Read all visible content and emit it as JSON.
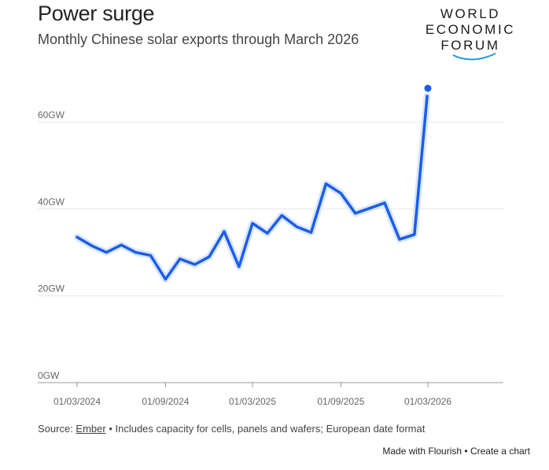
{
  "header": {
    "title": "Power surge",
    "subtitle": "Monthly Chinese solar exports through March 2026"
  },
  "logo": {
    "lines": [
      "WORLD",
      "ECONOMIC",
      "FORUM"
    ],
    "arc_color": "#1d9ad6"
  },
  "footer": {
    "source_prefix": "Source: ",
    "source_link": "Ember",
    "note": " • Includes capacity for cells, panels and wafers; European date format",
    "made_with": "Made with Flourish",
    "separator": " • ",
    "create": "Create a chart"
  },
  "colors": {
    "line": "#1a5ee8",
    "halo": "#dbe6fb",
    "grid": "#e8e8e8",
    "axis": "#999999"
  },
  "chart_data": {
    "type": "line",
    "title": "Power surge",
    "subtitle": "Monthly Chinese solar exports through March 2026",
    "ylim": [
      0,
      70
    ],
    "y_ticks": [
      0,
      20,
      40,
      60
    ],
    "y_tick_labels": [
      "0GW",
      "20GW",
      "40GW",
      "60GW"
    ],
    "x_tick_labels": [
      "01/03/2024",
      "01/09/2024",
      "01/03/2025",
      "01/09/2025",
      "01/03/2026"
    ],
    "x_tick_dates": [
      "2024-03-01",
      "2024-09-01",
      "2025-03-01",
      "2025-09-01",
      "2026-03-01"
    ],
    "x": [
      "2024-03-01",
      "2024-04-01",
      "2024-05-01",
      "2024-06-01",
      "2024-07-01",
      "2024-08-01",
      "2024-09-01",
      "2024-10-01",
      "2024-11-01",
      "2024-12-01",
      "2025-01-01",
      "2025-02-01",
      "2025-03-01",
      "2025-04-01",
      "2025-05-01",
      "2025-06-01",
      "2025-07-01",
      "2025-08-01",
      "2025-09-01",
      "2025-10-01",
      "2025-11-01",
      "2025-12-01",
      "2026-01-01",
      "2026-02-01",
      "2026-03-01"
    ],
    "series": [
      {
        "values": [
          33.5,
          31.5,
          30.0,
          31.7,
          30.0,
          29.3,
          23.8,
          28.5,
          27.2,
          29.0,
          34.8,
          26.7,
          36.7,
          34.4,
          38.5,
          35.9,
          34.6,
          45.8,
          43.6,
          39.0,
          40.2,
          41.4,
          33.0,
          34.1,
          67.8
        ]
      }
    ]
  }
}
